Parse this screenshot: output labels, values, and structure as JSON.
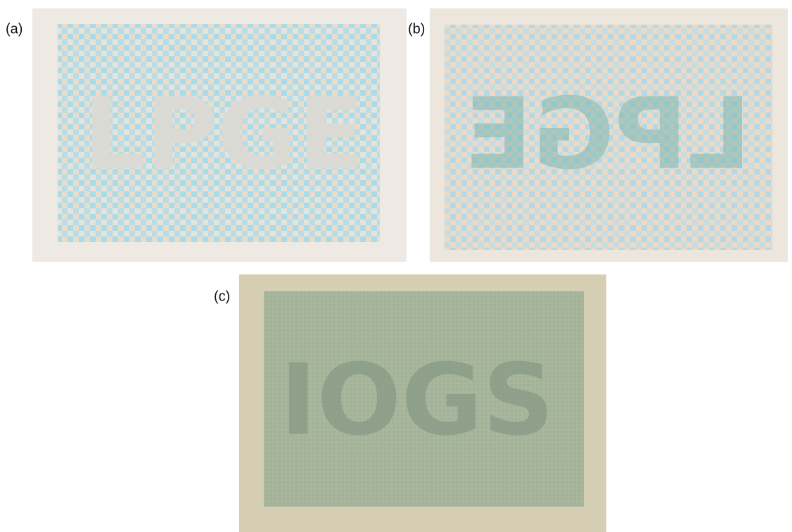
{
  "panels": [
    {
      "label": "(a)",
      "hidden_text": "LPGE"
    },
    {
      "label": "(b)",
      "hidden_text": "LPGE"
    },
    {
      "label": "(c)",
      "hidden_text": "IOGS"
    }
  ]
}
